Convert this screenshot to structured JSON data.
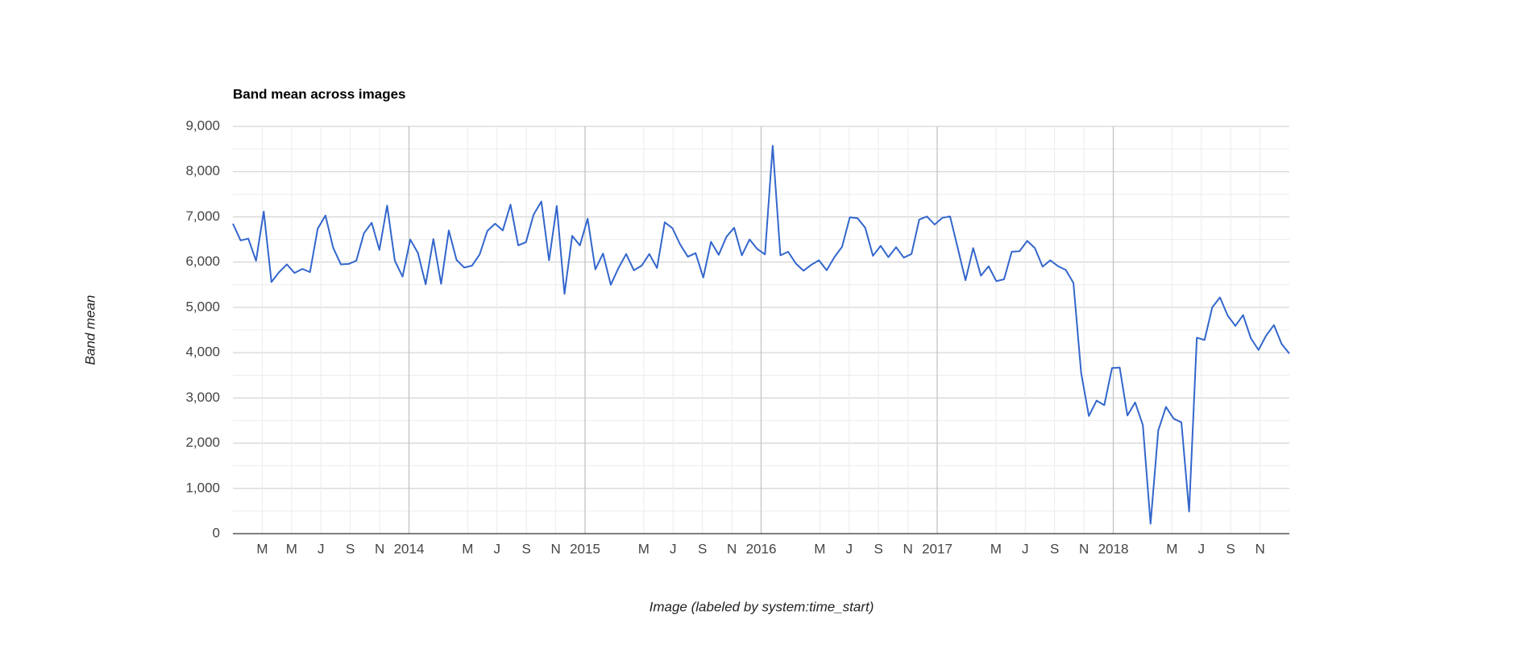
{
  "chart_data": {
    "type": "line",
    "title": "Band mean across images",
    "x_label": "Image (labeled by system:time_start)",
    "y_label": "Band mean",
    "xlim": [
      "2013-01",
      "2019-01"
    ],
    "xticks": [
      {
        "value": "2013-03",
        "label": "M"
      },
      {
        "value": "2013-05",
        "label": "M"
      },
      {
        "value": "2013-07",
        "label": "J"
      },
      {
        "value": "2013-09",
        "label": "S"
      },
      {
        "value": "2013-11",
        "label": "N"
      },
      {
        "value": "2014-01",
        "label": "2014"
      },
      {
        "value": "2014-05",
        "label": "M"
      },
      {
        "value": "2014-07",
        "label": "J"
      },
      {
        "value": "2014-09",
        "label": "S"
      },
      {
        "value": "2014-11",
        "label": "N"
      },
      {
        "value": "2015-01",
        "label": "2015"
      },
      {
        "value": "2015-05",
        "label": "M"
      },
      {
        "value": "2015-07",
        "label": "J"
      },
      {
        "value": "2015-09",
        "label": "S"
      },
      {
        "value": "2015-11",
        "label": "N"
      },
      {
        "value": "2016-01",
        "label": "2016"
      },
      {
        "value": "2016-05",
        "label": "M"
      },
      {
        "value": "2016-07",
        "label": "J"
      },
      {
        "value": "2016-09",
        "label": "S"
      },
      {
        "value": "2016-11",
        "label": "N"
      },
      {
        "value": "2017-01",
        "label": "2017"
      },
      {
        "value": "2017-05",
        "label": "M"
      },
      {
        "value": "2017-07",
        "label": "J"
      },
      {
        "value": "2017-09",
        "label": "S"
      },
      {
        "value": "2017-11",
        "label": "N"
      },
      {
        "value": "2018-01",
        "label": "2018"
      },
      {
        "value": "2018-05",
        "label": "M"
      },
      {
        "value": "2018-07",
        "label": "J"
      },
      {
        "value": "2018-09",
        "label": "S"
      },
      {
        "value": "2018-11",
        "label": "N"
      }
    ],
    "ylim": [
      0,
      9000
    ],
    "yticks": [
      0,
      {
        "value": 1000,
        "label": "1,000"
      },
      {
        "value": 2000,
        "label": "2,000"
      },
      {
        "value": 3000,
        "label": "3,000"
      },
      {
        "value": 4000,
        "label": "4,000"
      },
      {
        "value": 5000,
        "label": "5,000"
      },
      {
        "value": 6000,
        "label": "6,000"
      },
      {
        "value": 7000,
        "label": "7,000"
      },
      {
        "value": 8000,
        "label": "8,000"
      },
      {
        "value": 9000,
        "label": "9,000"
      }
    ],
    "grid": true,
    "series": [
      {
        "color": "#3366cc",
        "values": [
          6850,
          6480,
          6520,
          6030,
          7120,
          5560,
          5780,
          5950,
          5760,
          5850,
          5780,
          6740,
          7030,
          6320,
          5950,
          5960,
          6030,
          6640,
          6870,
          6270,
          7250,
          6030,
          5680,
          6500,
          6200,
          5510,
          6510,
          5520,
          6700,
          6050,
          5880,
          5920,
          6170,
          6690,
          6850,
          6700,
          7270,
          6370,
          6440,
          7050,
          7340,
          6040,
          7240,
          5300,
          6580,
          6370,
          6960,
          5840,
          6190,
          5500,
          5870,
          6180,
          5820,
          5920,
          6180,
          5870,
          6880,
          6750,
          6390,
          6120,
          6200,
          5660,
          6450,
          6160,
          6560,
          6760,
          6150,
          6500,
          6290,
          6170,
          8570,
          6150,
          6230,
          5970,
          5810,
          5940,
          6040,
          5820,
          6110,
          6340,
          6990,
          6970,
          6760,
          6140,
          6360,
          6110,
          6330,
          6100,
          6180,
          6940,
          7010,
          6830,
          6980,
          7010,
          6310,
          5600,
          6310,
          5700,
          5910,
          5580,
          5620,
          6230,
          6240,
          6470,
          6310,
          5900,
          6040,
          5910,
          5830,
          5540,
          3550,
          2600,
          2940,
          2840,
          3660,
          3670,
          2610,
          2900,
          2400,
          220,
          2280,
          2800,
          2540,
          2460,
          490,
          4330,
          4280,
          5000,
          5220,
          4820,
          4590,
          4830,
          4320,
          4060,
          4380,
          4610,
          4190,
          3980
        ]
      }
    ]
  }
}
